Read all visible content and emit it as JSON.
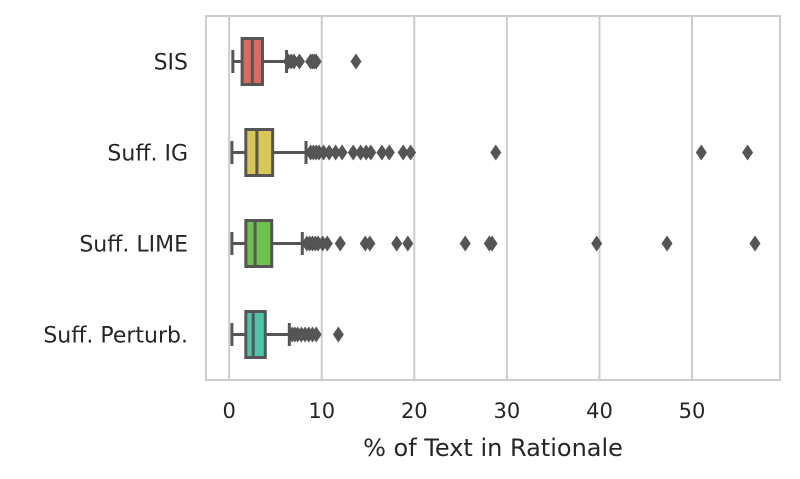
{
  "chart_data": {
    "type": "boxplot",
    "orientation": "horizontal",
    "xlabel": "% of Text in Rationale",
    "ylabel": "",
    "title": "",
    "xlim": [
      -2.5,
      59.5
    ],
    "xticks": [
      0,
      10,
      20,
      30,
      40,
      50
    ],
    "grid": "vertical",
    "categories": [
      "SIS",
      "Suff. IG",
      "Suff. LIME",
      "Suff. Perturb."
    ],
    "series": [
      {
        "category": "SIS",
        "color": "#dc6b5f",
        "whisker_low": 0.4,
        "q1": 1.4,
        "median": 2.5,
        "q3": 3.6,
        "whisker_high": 6.2,
        "outliers": [
          6.4,
          6.7,
          7.0,
          7.6,
          8.8,
          9.0,
          9.2,
          9.4,
          13.7
        ]
      },
      {
        "category": "Suff. IG",
        "color": "#d8c752",
        "whisker_low": 0.3,
        "q1": 1.8,
        "median": 3.0,
        "q3": 4.7,
        "whisker_high": 8.3,
        "outliers": [
          8.8,
          9.1,
          9.4,
          9.7,
          10.2,
          10.8,
          11.5,
          12.2,
          13.4,
          14.2,
          14.8,
          15.3,
          16.5,
          17.3,
          18.8,
          19.6,
          28.8,
          51.0,
          56.0
        ]
      },
      {
        "category": "Suff. LIME",
        "color": "#6ec24c",
        "whisker_low": 0.3,
        "q1": 1.8,
        "median": 2.8,
        "q3": 4.6,
        "whisker_high": 7.9,
        "outliers": [
          8.4,
          8.7,
          9.0,
          9.3,
          9.6,
          10.1,
          10.6,
          12.0,
          14.7,
          15.2,
          18.1,
          19.3,
          25.5,
          28.1,
          28.4,
          39.7,
          47.3,
          56.8
        ]
      },
      {
        "category": "Suff. Perturb.",
        "color": "#4cc6a9",
        "whisker_low": 0.3,
        "q1": 1.8,
        "median": 2.6,
        "q3": 3.9,
        "whisker_high": 6.5,
        "outliers": [
          6.8,
          7.1,
          7.4,
          7.8,
          8.2,
          8.6,
          9.0,
          9.4,
          11.8
        ]
      }
    ]
  }
}
